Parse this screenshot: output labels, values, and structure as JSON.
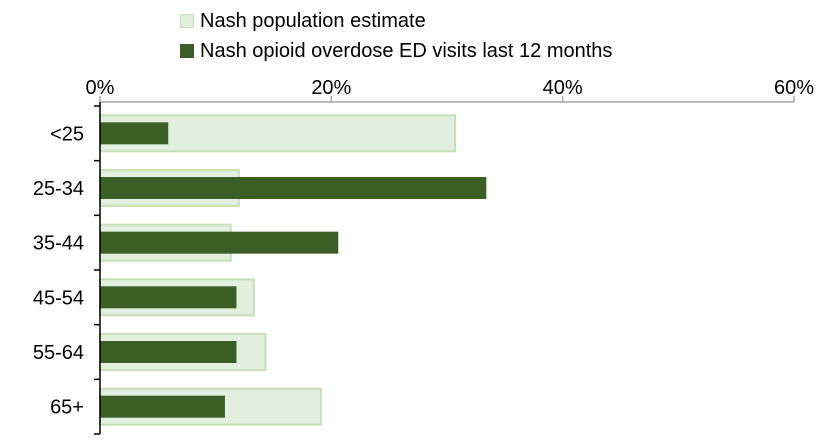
{
  "chart_data": {
    "type": "bar",
    "orientation": "horizontal",
    "categories": [
      "<25",
      "25-34",
      "35-44",
      "45-54",
      "55-64",
      "65+"
    ],
    "series": [
      {
        "name": "Nash population estimate",
        "values": [
          30.7,
          12.0,
          11.3,
          13.3,
          14.3,
          19.1
        ],
        "color": "#e2efde",
        "stroke": "#c5dfb8"
      },
      {
        "name": "Nash opioid overdose ED visits last 12 months",
        "values": [
          5.9,
          33.4,
          20.6,
          11.8,
          11.8,
          10.8
        ],
        "color": "#3a5e26"
      }
    ],
    "x_ticks": [
      "0%",
      "20%",
      "40%",
      "60%"
    ],
    "xlim": [
      0,
      60
    ],
    "xaxis_position": "top",
    "legend_position": "top",
    "grid": false
  }
}
